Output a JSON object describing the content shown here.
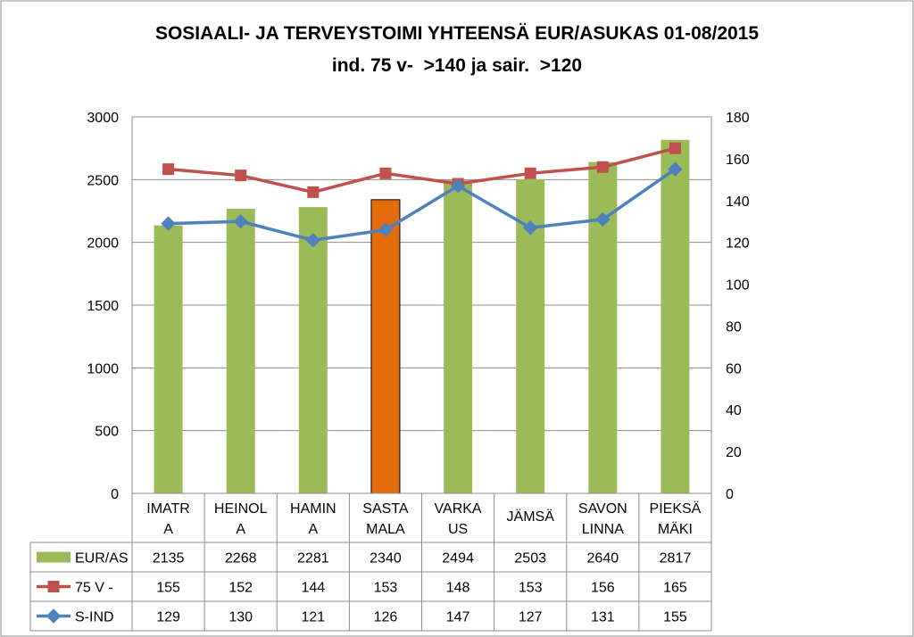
{
  "chart_data": {
    "type": "bar",
    "title": "SOSIAALI- JA TERVEYSTOIMI YHTEENSÄ EUR/ASUKAS 01-08/2015",
    "subtitle": "ind. 75 v-  >140 ja sair.  >120",
    "categories": [
      [
        "IMATR",
        "A"
      ],
      [
        "HEINOL",
        "A"
      ],
      [
        "HAMIN",
        "A"
      ],
      [
        "SASTA",
        "MALA"
      ],
      [
        "VARKA",
        "US"
      ],
      [
        "JÄMSÄ"
      ],
      [
        "SAVON",
        "LINNA"
      ],
      [
        "PIEKSÄ",
        "MÄKI"
      ]
    ],
    "y_left": {
      "min": 0,
      "max": 3000,
      "ticks": [
        0,
        500,
        1000,
        1500,
        2000,
        2500,
        3000
      ]
    },
    "y_right": {
      "min": 0,
      "max": 180,
      "ticks": [
        0,
        20,
        40,
        60,
        80,
        100,
        120,
        140,
        160,
        180
      ]
    },
    "grid": true,
    "legend": "data-table",
    "highlight_index": 3,
    "series": [
      {
        "name": "EUR/AS",
        "kind": "bar",
        "axis": "left",
        "color": "#9bbb59",
        "highlight_color": "#e46c0a",
        "values": [
          2135,
          2268,
          2281,
          2340,
          2494,
          2503,
          2640,
          2817
        ]
      },
      {
        "name": "75 V -",
        "kind": "line",
        "axis": "right",
        "color": "#c0504d",
        "marker": "square",
        "values": [
          155,
          152,
          144,
          153,
          148,
          153,
          156,
          165
        ]
      },
      {
        "name": "S-IND",
        "kind": "line",
        "axis": "right",
        "color": "#4f81bd",
        "marker": "diamond",
        "values": [
          129,
          130,
          121,
          126,
          147,
          127,
          131,
          155
        ]
      }
    ]
  }
}
